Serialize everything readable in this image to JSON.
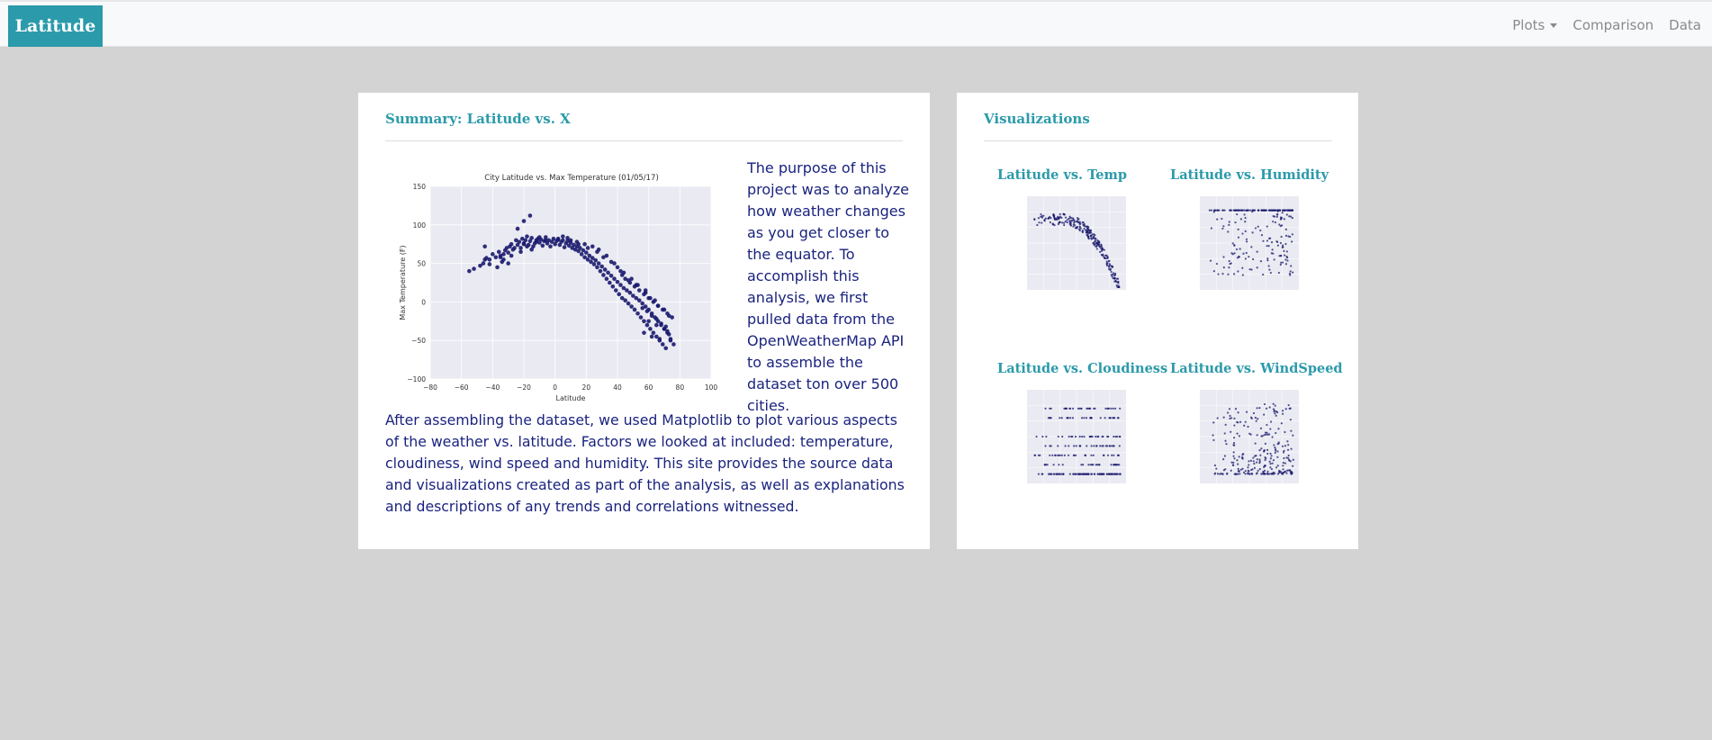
{
  "navbar": {
    "brand": "Latitude",
    "links": [
      {
        "label": "Plots",
        "dropdown": true
      },
      {
        "label": "Comparison"
      },
      {
        "label": "Data"
      }
    ]
  },
  "summary": {
    "title": "Summary: Latitude vs. X",
    "intro": "The purpose of this project was to analyze how weather changes as you get closer to the equator. To accomplish this analysis, we first pulled data from the OpenWeatherMap API to assemble the dataset ton over 500 cities.",
    "paragraph": "After assembling the dataset, we used Matplotlib to plot various aspects of the weather vs. latitude. Factors we looked at included: temperature, cloudiness, wind speed and humidity. This site provides the source data and visualizations created as part of the analysis, as well as explanations and descriptions of any trends and correlations witnessed."
  },
  "visualizations": {
    "title": "Visualizations",
    "items": [
      {
        "label": "Latitude vs. Temp"
      },
      {
        "label": "Latitude vs. Humidity"
      },
      {
        "label": "Latitude vs. Cloudiness"
      },
      {
        "label": "Latitude vs. WindSpeed"
      }
    ]
  },
  "colors": {
    "accent": "#2b9aaa",
    "text": "#1a237e",
    "background": "#d3d3d3",
    "point": "#1a1a6e",
    "plot_bg": "#eaeaf2"
  },
  "chart_data": {
    "type": "scatter",
    "title": "City Latitude vs. Max Temperature (01/05/17)",
    "xlabel": "Latitude",
    "ylabel": "Max Temperature (F)",
    "xlim": [
      -80,
      100
    ],
    "ylim": [
      -100,
      150
    ],
    "xticks": [
      -80,
      -60,
      -40,
      -20,
      0,
      20,
      40,
      60,
      80,
      100
    ],
    "yticks": [
      -100,
      -50,
      0,
      50,
      100,
      150
    ],
    "grid": true,
    "series": [
      {
        "x": [
          -55,
          -52,
          -48,
          -46,
          -45,
          -44,
          -42,
          -40,
          -38,
          -36,
          -35,
          -34,
          -33,
          -32,
          -31,
          -30,
          -29,
          -28,
          -27,
          -26,
          -25,
          -24,
          -23,
          -22,
          -21,
          -20,
          -19,
          -18,
          -17,
          -16,
          -15,
          -14,
          -13,
          -12,
          -11,
          -10,
          -9,
          -8,
          -7,
          -6,
          -5,
          -4,
          -3,
          -2,
          -1,
          0,
          1,
          2,
          3,
          4,
          5,
          6,
          7,
          8,
          9,
          10,
          11,
          12,
          13,
          14,
          15,
          16,
          17,
          18,
          19,
          20,
          21,
          22,
          23,
          24,
          25,
          26,
          27,
          28,
          29,
          30,
          31,
          32,
          33,
          34,
          35,
          36,
          37,
          38,
          39,
          40,
          41,
          42,
          43,
          44,
          45,
          46,
          47,
          48,
          49,
          50,
          51,
          52,
          53,
          54,
          55,
          56,
          57,
          58,
          59,
          60,
          61,
          62,
          63,
          64,
          65,
          66,
          67,
          68,
          69,
          70,
          71,
          72,
          73,
          74,
          -37,
          -33,
          -28,
          -22,
          -18,
          -12,
          -6,
          2,
          8,
          14,
          19,
          24,
          28,
          33,
          38,
          42,
          45,
          48,
          51,
          54,
          57,
          60,
          63,
          66,
          69,
          72,
          75,
          56,
          59,
          62,
          65,
          68,
          71,
          43,
          47,
          52,
          58,
          64,
          70,
          -42,
          -35,
          -20,
          -15,
          -10,
          5,
          10,
          15,
          21,
          27,
          31,
          36,
          40,
          44,
          49,
          53,
          58,
          61,
          66,
          73,
          60,
          65,
          70,
          72,
          57,
          62,
          67,
          74,
          76,
          -24,
          -20,
          -16,
          -45,
          -30
        ],
        "y": [
          40,
          43,
          47,
          50,
          55,
          57,
          49,
          62,
          58,
          65,
          60,
          52,
          62,
          67,
          70,
          64,
          72,
          75,
          68,
          70,
          80,
          74,
          78,
          70,
          82,
          76,
          80,
          85,
          74,
          79,
          83,
          72,
          76,
          80,
          82,
          77,
          81,
          73,
          79,
          84,
          76,
          80,
          72,
          78,
          82,
          75,
          79,
          81,
          74,
          78,
          80,
          71,
          76,
          79,
          73,
          77,
          70,
          74,
          68,
          72,
          66,
          70,
          62,
          67,
          58,
          64,
          55,
          60,
          52,
          57,
          49,
          54,
          45,
          50,
          40,
          46,
          35,
          42,
          30,
          38,
          25,
          34,
          20,
          30,
          15,
          26,
          10,
          22,
          5,
          18,
          2,
          15,
          -2,
          12,
          -6,
          8,
          -10,
          5,
          -15,
          2,
          -20,
          -2,
          -25,
          -6,
          -30,
          -10,
          -35,
          -15,
          -40,
          -20,
          -45,
          -25,
          -50,
          -30,
          -55,
          -35,
          -60,
          -40,
          -42,
          -48,
          45,
          55,
          60,
          65,
          72,
          78,
          80,
          82,
          83,
          78,
          75,
          72,
          68,
          60,
          50,
          40,
          30,
          25,
          20,
          15,
          10,
          5,
          0,
          -5,
          -10,
          -15,
          -20,
          -8,
          -12,
          -18,
          -22,
          -28,
          -32,
          35,
          28,
          22,
          12,
          2,
          -10,
          55,
          58,
          75,
          68,
          84,
          85,
          80,
          75,
          70,
          65,
          58,
          52,
          45,
          38,
          30,
          22,
          15,
          5,
          -5,
          -18,
          -25,
          -30,
          -35,
          -38,
          -40,
          -45,
          -48,
          -50,
          -55,
          95,
          105,
          112,
          72,
          50
        ]
      }
    ]
  }
}
